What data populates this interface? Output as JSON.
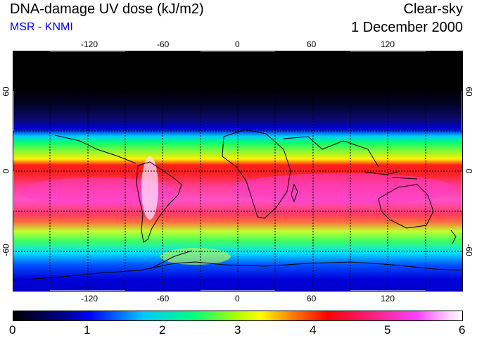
{
  "header": {
    "title": "DNA-damage UV dose (kJ/m2)",
    "subtitle": "MSR - KNMI",
    "condition": "Clear-sky",
    "date": "1 December 2000"
  },
  "axes": {
    "lon_ticks": [
      "-120",
      "-60",
      "0",
      "60",
      "120"
    ],
    "lat_ticks": [
      "60",
      "0",
      "-60"
    ]
  },
  "colorbar": {
    "labels": [
      "0",
      "1",
      "2",
      "3",
      "4",
      "5",
      "6"
    ]
  },
  "colors": {
    "subtitle": "#0000ff",
    "coast": "#000000"
  }
}
